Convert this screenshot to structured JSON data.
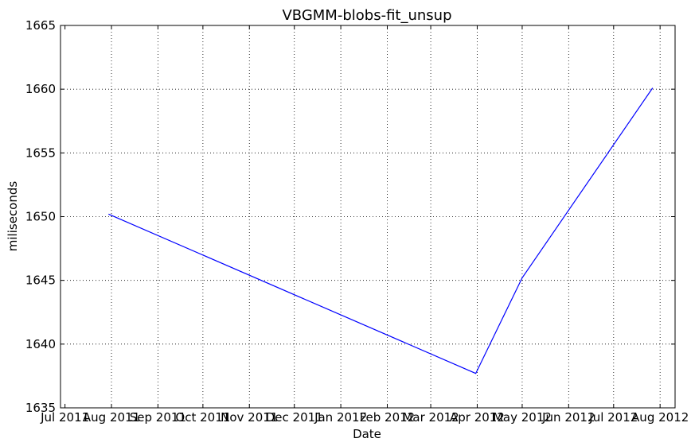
{
  "chart_data": {
    "type": "line",
    "title": "VBGMM-blobs-fit_unsup",
    "xlabel": "Date",
    "ylabel": "miliseconds",
    "x_ticks": [
      "Jul 2011",
      "Aug 2011",
      "Sep 2011",
      "Oct 2011",
      "Nov 2011",
      "Dec 2011",
      "Jan 2012",
      "Feb 2012",
      "Mar 2012",
      "Apr 2012",
      "May 2012",
      "Jun 2012",
      "Jul 2012",
      "Aug 2012"
    ],
    "y_ticks": [
      1635,
      1640,
      1645,
      1650,
      1655,
      1660,
      1665
    ],
    "xlim": [
      "2011-07-01",
      "2012-08-01"
    ],
    "ylim": [
      1635,
      1665
    ],
    "grid": true,
    "legend": "none",
    "series": [
      {
        "color": "#0000ff",
        "x": [
          "2011-07-30",
          "2012-03-31",
          "2012-05-01",
          "2012-07-27"
        ],
        "y": [
          1650.2,
          1637.7,
          1645.2,
          1660.1
        ]
      }
    ]
  }
}
